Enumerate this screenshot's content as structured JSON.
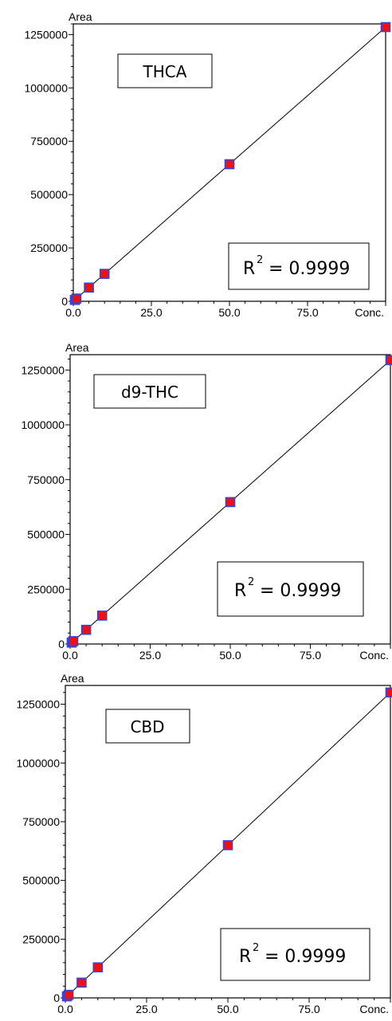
{
  "chart_data": [
    {
      "type": "scatter",
      "label": "THCA",
      "xlabel": "Conc.",
      "ylabel": "Area",
      "xlim": [
        0,
        100
      ],
      "ylim": [
        0,
        1300000
      ],
      "x_ticks": [
        "0.0",
        "25.0",
        "50.0",
        "75.0"
      ],
      "y_ticks": [
        "0",
        "250000",
        "500000",
        "750000",
        "1000000",
        "1250000"
      ],
      "r2_label": "R",
      "r2_sup": "2",
      "r2_value": "= 0.9999",
      "fit": {
        "slope": 12850,
        "intercept": 0
      },
      "points": [
        {
          "x": 0.5,
          "y": 6400
        },
        {
          "x": 1,
          "y": 12800
        },
        {
          "x": 5,
          "y": 64200
        },
        {
          "x": 10,
          "y": 128500
        },
        {
          "x": 50,
          "y": 642500
        },
        {
          "x": 100,
          "y": 1285000
        }
      ],
      "marker_color": "#ee1111",
      "marker_edge": "#3344dd",
      "line_color": "#000000"
    },
    {
      "type": "scatter",
      "label": "d9-THC",
      "xlabel": "Conc.",
      "ylabel": "Area",
      "xlim": [
        0,
        100
      ],
      "ylim": [
        0,
        1300000
      ],
      "x_ticks": [
        "0.0",
        "25.0",
        "50.0",
        "75.0"
      ],
      "y_ticks": [
        "0",
        "250000",
        "500000",
        "750000",
        "1000000",
        "1250000"
      ],
      "r2_label": "R",
      "r2_sup": "2",
      "r2_value": "= 0.9999",
      "fit": {
        "slope": 12950,
        "intercept": 0
      },
      "points": [
        {
          "x": 0.5,
          "y": 6500
        },
        {
          "x": 1,
          "y": 13000
        },
        {
          "x": 5,
          "y": 64800
        },
        {
          "x": 10,
          "y": 129500
        },
        {
          "x": 50,
          "y": 647500
        },
        {
          "x": 100,
          "y": 1295000
        }
      ],
      "marker_color": "#ee1111",
      "marker_edge": "#3344dd",
      "line_color": "#000000"
    },
    {
      "type": "scatter",
      "label": "CBD",
      "xlabel": "Conc.",
      "ylabel": "Area",
      "xlim": [
        0,
        100
      ],
      "ylim": [
        0,
        1300000
      ],
      "x_ticks": [
        "0.0",
        "25.0",
        "50.0",
        "75.0"
      ],
      "y_ticks": [
        "0",
        "250000",
        "500000",
        "750000",
        "1000000",
        "1250000"
      ],
      "r2_label": "R",
      "r2_sup": "2",
      "r2_value": "= 0.9999",
      "fit": {
        "slope": 13000,
        "intercept": 0
      },
      "points": [
        {
          "x": 0.5,
          "y": 6500
        },
        {
          "x": 1,
          "y": 13000
        },
        {
          "x": 5,
          "y": 65000
        },
        {
          "x": 10,
          "y": 130000
        },
        {
          "x": 50,
          "y": 650000
        },
        {
          "x": 100,
          "y": 1300000
        }
      ],
      "marker_color": "#ee1111",
      "marker_edge": "#3344dd",
      "line_color": "#000000"
    }
  ]
}
